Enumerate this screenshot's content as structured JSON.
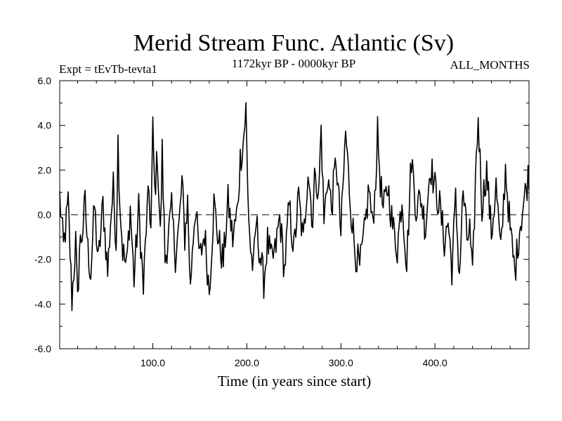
{
  "chart_data": {
    "type": "line",
    "title": "Merid Stream Func. Atlantic (Sv)",
    "subtitle_left": "Expt = tEvTb-tevta1",
    "subtitle_center": "1172kyr BP - 0000kyr BP",
    "subtitle_right": "ALL_MONTHS",
    "xlabel": "Time (in years since start)",
    "ylabel": "",
    "xlim": [
      1,
      500
    ],
    "ylim": [
      -6.0,
      6.0
    ],
    "xticks": [
      100,
      200,
      300,
      400
    ],
    "xtick_labels": [
      "100.0",
      "200.0",
      "300.0",
      "400.0"
    ],
    "yticks": [
      -6,
      -4,
      -2,
      0,
      2,
      4,
      6
    ],
    "ytick_labels": [
      "-6.0",
      "-4.0",
      "-2.0",
      "0.0",
      "2.0",
      "4.0",
      "6.0"
    ],
    "zero_line": true,
    "grid": false,
    "series": [
      {
        "name": "Merid Stream Func. Atlantic",
        "color": "#000000",
        "x": [
          1,
          5,
          10,
          14,
          18,
          20,
          22,
          25,
          28,
          31,
          34,
          38,
          42,
          47,
          52,
          55,
          58,
          61,
          63,
          65,
          68,
          72,
          76,
          80,
          85,
          90,
          93,
          96,
          98,
          100,
          102,
          105,
          108,
          110,
          113,
          116,
          120,
          124,
          128,
          131,
          134,
          137,
          140,
          142,
          145,
          150,
          155,
          160,
          165,
          170,
          175,
          180,
          185,
          190,
          193,
          196,
          199,
          201,
          204,
          207,
          210,
          214,
          218,
          222,
          226,
          230,
          235,
          240,
          245,
          250,
          255,
          260,
          265,
          270,
          273,
          276,
          279,
          282,
          286,
          290,
          295,
          300,
          305,
          310,
          315,
          320,
          325,
          330,
          333,
          336,
          339,
          342,
          345,
          350,
          355,
          360,
          365,
          370,
          375,
          380,
          385,
          390,
          395,
          400,
          405,
          410,
          414,
          418,
          422,
          426,
          430,
          434,
          437,
          440,
          443,
          446,
          450,
          455,
          460,
          465,
          470,
          475,
          480,
          485,
          490,
          495,
          500
        ],
        "y": [
          0.8,
          -1.5,
          0.5,
          -3.8,
          -1.2,
          -4.0,
          -1.5,
          -0.8,
          0.5,
          -1.6,
          -2.6,
          0.4,
          -2.2,
          0.5,
          -2.6,
          -0.3,
          1.2,
          -1.2,
          3.3,
          0.6,
          -1.6,
          -2.4,
          0.3,
          -2.9,
          0.3,
          -3.4,
          -0.5,
          1.0,
          -0.7,
          3.8,
          1.0,
          2.7,
          -1.0,
          2.8,
          -2.0,
          -1.1,
          0.2,
          -1.8,
          -0.5,
          1.5,
          -1.0,
          0.6,
          -3.4,
          -1.4,
          0.3,
          -2.0,
          -0.8,
          -3.4,
          0.5,
          -1.2,
          -2.1,
          0.6,
          -1.1,
          0.2,
          2.5,
          3.2,
          4.7,
          0.9,
          -1.6,
          -2.5,
          -0.3,
          -1.8,
          -3.0,
          -1.2,
          -2.1,
          -1.7,
          -0.1,
          -2.5,
          0.4,
          -1.6,
          0.8,
          -1.3,
          2.1,
          -0.3,
          2.3,
          0.5,
          3.9,
          -0.3,
          1.8,
          0.3,
          2.5,
          -0.9,
          3.7,
          0.6,
          -1.6,
          -2.4,
          -0.9,
          1.3,
          -0.5,
          0.8,
          3.6,
          1.5,
          0.1,
          1.3,
          -0.5,
          -1.5,
          0.8,
          -2.2,
          2.6,
          0.3,
          0.8,
          -0.6,
          2.3,
          1.2,
          0.4,
          -1.2,
          -0.3,
          -2.4,
          0.6,
          -2.7,
          1.1,
          -1.1,
          -0.7,
          -3.0,
          1.5,
          4.4,
          0.4,
          2.0,
          -0.9,
          1.3,
          -1.8,
          2.1,
          -0.7,
          -2.6,
          -0.6,
          0.7,
          1.9
        ]
      }
    ]
  }
}
